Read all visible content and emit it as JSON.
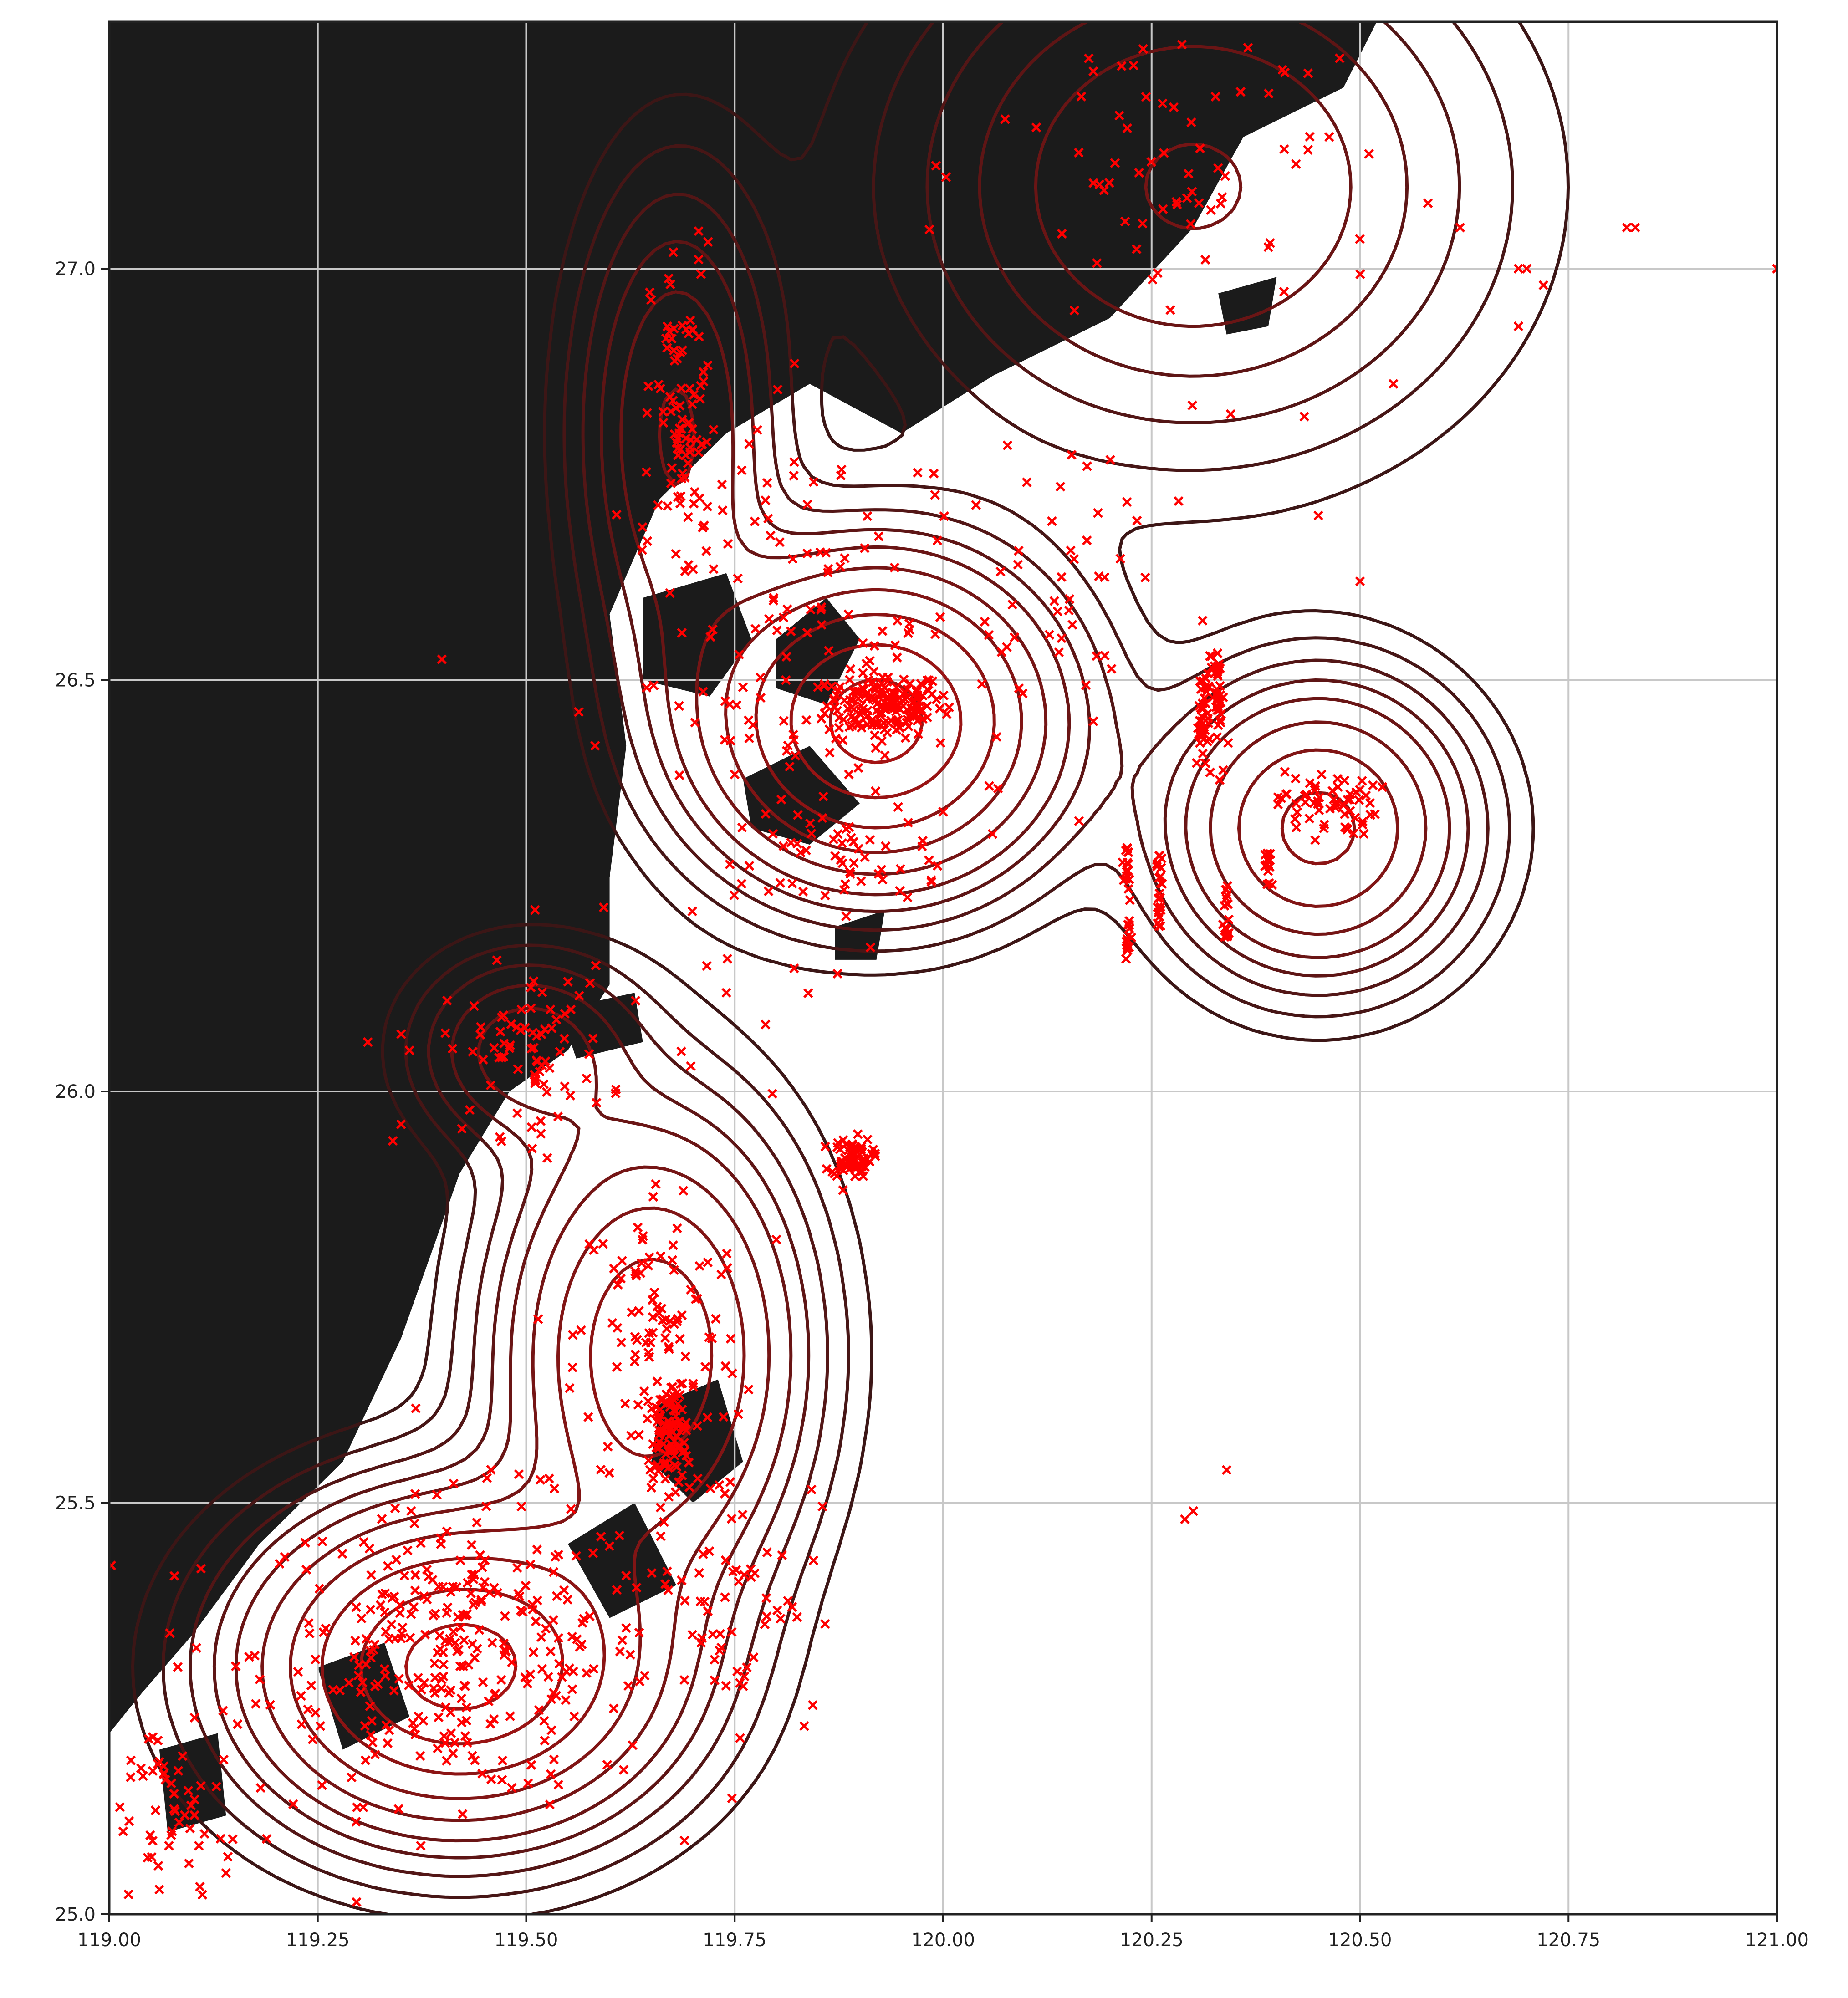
{
  "colors": {
    "land": "#1b1b1b",
    "sea": "#ffffff",
    "grid": "#c8c8c8",
    "points": "#ff0000",
    "frame": "#222222",
    "contour_inner": "#a31414",
    "contour_outer": "#3c1616"
  },
  "map": {
    "x_range": [
      119.0,
      121.0
    ],
    "y_range": [
      25.0,
      27.3
    ],
    "x_ticks": [
      {
        "value": 119.0,
        "label": "119.00"
      },
      {
        "value": 119.25,
        "label": "119.25"
      },
      {
        "value": 119.5,
        "label": "119.50"
      },
      {
        "value": 119.75,
        "label": "119.75"
      },
      {
        "value": 120.0,
        "label": "120.00"
      },
      {
        "value": 120.25,
        "label": "120.25"
      },
      {
        "value": 120.5,
        "label": "120.50"
      },
      {
        "value": 120.75,
        "label": "120.75"
      },
      {
        "value": 121.0,
        "label": "121.00"
      }
    ],
    "y_ticks": [
      {
        "value": 25.0,
        "label": "25.0"
      },
      {
        "value": 25.5,
        "label": "25.5"
      },
      {
        "value": 26.0,
        "label": "26.0"
      },
      {
        "value": 26.5,
        "label": "26.5"
      },
      {
        "value": 27.0,
        "label": "27.0"
      }
    ],
    "land_polygon": [
      [
        119.0,
        27.3
      ],
      [
        120.52,
        27.3
      ],
      [
        120.48,
        27.22
      ],
      [
        120.36,
        27.16
      ],
      [
        120.3,
        27.05
      ],
      [
        120.2,
        26.94
      ],
      [
        120.06,
        26.87
      ],
      [
        119.95,
        26.8
      ],
      [
        119.84,
        26.86
      ],
      [
        119.74,
        26.8
      ],
      [
        119.66,
        26.72
      ],
      [
        119.6,
        26.58
      ],
      [
        119.62,
        26.42
      ],
      [
        119.6,
        26.26
      ],
      [
        119.6,
        26.13
      ],
      [
        119.55,
        26.05
      ],
      [
        119.48,
        26.0
      ],
      [
        119.42,
        25.9
      ],
      [
        119.35,
        25.7
      ],
      [
        119.28,
        25.55
      ],
      [
        119.18,
        25.45
      ],
      [
        119.1,
        25.34
      ],
      [
        119.04,
        25.27
      ],
      [
        119.0,
        25.22
      ]
    ],
    "islands": [
      [
        [
          119.64,
          26.6
        ],
        [
          119.74,
          26.63
        ],
        [
          119.77,
          26.55
        ],
        [
          119.72,
          26.48
        ],
        [
          119.64,
          26.5
        ]
      ],
      [
        [
          119.8,
          26.55
        ],
        [
          119.86,
          26.6
        ],
        [
          119.9,
          26.55
        ],
        [
          119.86,
          26.47
        ],
        [
          119.8,
          26.49
        ]
      ],
      [
        [
          119.76,
          26.38
        ],
        [
          119.84,
          26.42
        ],
        [
          119.9,
          26.35
        ],
        [
          119.84,
          26.3
        ],
        [
          119.77,
          26.32
        ]
      ],
      [
        [
          119.54,
          26.1
        ],
        [
          119.63,
          26.12
        ],
        [
          119.64,
          26.06
        ],
        [
          119.56,
          26.04
        ]
      ],
      [
        [
          119.66,
          25.62
        ],
        [
          119.73,
          25.65
        ],
        [
          119.76,
          25.55
        ],
        [
          119.7,
          25.5
        ],
        [
          119.65,
          25.55
        ]
      ],
      [
        [
          119.55,
          25.45
        ],
        [
          119.63,
          25.5
        ],
        [
          119.68,
          25.4
        ],
        [
          119.6,
          25.36
        ]
      ],
      [
        [
          119.25,
          25.3
        ],
        [
          119.33,
          25.33
        ],
        [
          119.36,
          25.24
        ],
        [
          119.28,
          25.2
        ]
      ],
      [
        [
          119.06,
          25.2
        ],
        [
          119.13,
          25.22
        ],
        [
          119.14,
          25.12
        ],
        [
          119.07,
          25.1
        ]
      ],
      [
        [
          120.33,
          26.97
        ],
        [
          120.4,
          26.99
        ],
        [
          120.39,
          26.93
        ],
        [
          120.34,
          26.92
        ]
      ],
      [
        [
          119.87,
          26.2
        ],
        [
          119.93,
          26.22
        ],
        [
          119.92,
          26.16
        ],
        [
          119.87,
          26.16
        ]
      ]
    ]
  },
  "chart_data": {
    "type": "scatter",
    "xlim": [
      119.0,
      121.0
    ],
    "ylim": [
      25.0,
      27.3
    ],
    "grid": true,
    "density_peaks": [
      {
        "x": 119.92,
        "y": 26.45,
        "sx": 0.12,
        "sy": 0.11,
        "w": 1.0
      },
      {
        "x": 119.42,
        "y": 25.3,
        "sx": 0.14,
        "sy": 0.11,
        "w": 1.0
      },
      {
        "x": 119.65,
        "y": 25.68,
        "sx": 0.1,
        "sy": 0.16,
        "w": 0.65
      },
      {
        "x": 120.45,
        "y": 26.32,
        "sx": 0.1,
        "sy": 0.1,
        "w": 0.55
      },
      {
        "x": 119.68,
        "y": 26.8,
        "sx": 0.07,
        "sy": 0.18,
        "w": 0.25
      },
      {
        "x": 120.3,
        "y": 27.1,
        "sx": 0.2,
        "sy": 0.18,
        "w": 0.25
      },
      {
        "x": 119.5,
        "y": 26.05,
        "sx": 0.08,
        "sy": 0.07,
        "w": 0.2
      }
    ],
    "contour_levels": [
      0.02,
      0.04,
      0.07,
      0.11,
      0.16,
      0.24,
      0.35,
      0.5,
      0.7,
      0.9
    ],
    "point_clusters": [
      {
        "x": 119.93,
        "y": 26.47,
        "sx": 0.035,
        "sy": 0.02,
        "n": 170
      },
      {
        "x": 119.42,
        "y": 25.32,
        "sx": 0.12,
        "sy": 0.09,
        "n": 330
      },
      {
        "x": 119.67,
        "y": 25.58,
        "sx": 0.015,
        "sy": 0.03,
        "n": 90
      },
      {
        "x": 119.66,
        "y": 25.7,
        "sx": 0.05,
        "sy": 0.1,
        "n": 110
      },
      {
        "x": 119.89,
        "y": 25.92,
        "sx": 0.012,
        "sy": 0.012,
        "n": 70
      },
      {
        "x": 120.46,
        "y": 26.35,
        "sx": 0.03,
        "sy": 0.02,
        "n": 60
      },
      {
        "x": 119.69,
        "y": 26.81,
        "sx": 0.02,
        "sy": 0.11,
        "n": 90
      },
      {
        "x": 119.5,
        "y": 26.05,
        "sx": 0.05,
        "sy": 0.05,
        "n": 80
      },
      {
        "x": 119.85,
        "y": 26.5,
        "sx": 0.12,
        "sy": 0.16,
        "n": 170
      },
      {
        "x": 120.32,
        "y": 26.46,
        "sx": 0.008,
        "sy": 0.05,
        "n": 40
      },
      {
        "x": 120.3,
        "y": 27.12,
        "sx": 0.12,
        "sy": 0.12,
        "n": 80
      },
      {
        "x": 119.07,
        "y": 25.12,
        "sx": 0.04,
        "sy": 0.07,
        "n": 55
      },
      {
        "x": 119.88,
        "y": 26.28,
        "sx": 0.05,
        "sy": 0.03,
        "n": 40
      },
      {
        "x": 120.15,
        "y": 26.65,
        "sx": 0.06,
        "sy": 0.08,
        "n": 40
      },
      {
        "x": 119.75,
        "y": 25.4,
        "sx": 0.05,
        "sy": 0.08,
        "n": 60
      }
    ],
    "point_lines": [
      {
        "x": 120.22,
        "y0": 26.16,
        "y1": 26.3,
        "n": 30
      },
      {
        "x": 120.26,
        "y0": 26.2,
        "y1": 26.3,
        "n": 25
      },
      {
        "x": 120.34,
        "y0": 26.18,
        "y1": 26.25,
        "n": 20
      },
      {
        "x": 120.39,
        "y0": 26.25,
        "y1": 26.29,
        "n": 15
      },
      {
        "x": 120.31,
        "y0": 26.43,
        "y1": 26.5,
        "n": 20
      },
      {
        "x": 120.33,
        "y0": 26.45,
        "y1": 26.52,
        "n": 20
      }
    ],
    "points": [
      [
        120.62,
        27.05
      ],
      [
        120.82,
        27.05
      ],
      [
        120.83,
        27.05
      ],
      [
        120.69,
        27.0
      ],
      [
        120.7,
        27.0
      ],
      [
        120.72,
        26.98
      ],
      [
        121.0,
        27.0
      ],
      [
        120.69,
        26.93
      ],
      [
        120.54,
        26.86
      ],
      [
        119.31,
        26.06
      ],
      [
        119.36,
        26.05
      ],
      [
        119.35,
        25.96
      ],
      [
        119.34,
        25.94
      ],
      [
        120.34,
        25.54
      ],
      [
        120.29,
        25.48
      ],
      [
        120.3,
        25.49
      ],
      [
        119.11,
        25.42
      ],
      [
        119.06,
        25.03
      ],
      [
        119.14,
        25.05
      ],
      [
        119.8,
        25.82
      ],
      [
        119.88,
        25.88
      ],
      [
        120.0,
        26.34
      ],
      [
        119.74,
        26.12
      ],
      [
        120.45,
        26.7
      ],
      [
        120.5,
        26.62
      ]
    ]
  }
}
